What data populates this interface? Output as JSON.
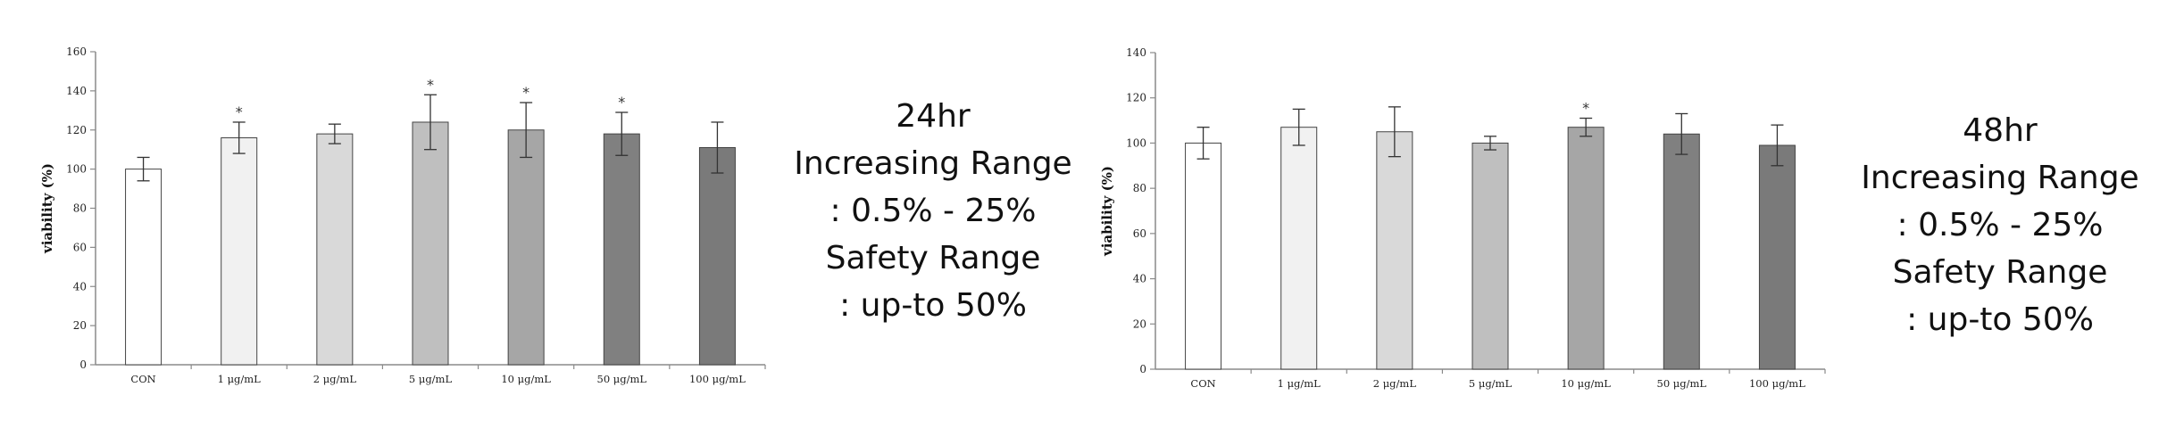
{
  "chart_data": [
    {
      "type": "bar",
      "ylabel": "viability (%)",
      "ylim": [
        0,
        160
      ],
      "yticks": [
        0,
        20,
        40,
        60,
        80,
        100,
        120,
        140,
        160
      ],
      "categories": [
        "CON",
        "1 μg/mL",
        "2 μg/mL",
        "5 μg/mL",
        "10 μg/mL",
        "50 μg/mL",
        "100 μg/mL"
      ],
      "values": [
        100,
        116,
        118,
        124,
        120,
        118,
        111
      ],
      "errors": [
        6,
        8,
        5,
        14,
        14,
        11,
        13
      ],
      "significance": [
        "",
        "*",
        "",
        "*",
        "*",
        "*",
        ""
      ],
      "colors": [
        "#ffffff",
        "#f1f1f1",
        "#d9d9d9",
        "#bfbfbf",
        "#a6a6a6",
        "#808080",
        "#7a7a7a"
      ],
      "grid": false,
      "legend": "none"
    },
    {
      "type": "bar",
      "ylabel": "viability (%)",
      "ylim": [
        0,
        140
      ],
      "yticks": [
        0,
        20,
        40,
        60,
        80,
        100,
        120,
        140
      ],
      "categories": [
        "CON",
        "1 μg/mL",
        "2 μg/mL",
        "5 μg/mL",
        "10 μg/mL",
        "50 μg/mL",
        "100 μg/mL"
      ],
      "values": [
        100,
        107,
        105,
        100,
        107,
        104,
        99
      ],
      "errors": [
        7,
        8,
        11,
        3,
        4,
        9,
        9
      ],
      "significance": [
        "",
        "",
        "",
        "",
        "*",
        "",
        ""
      ],
      "colors": [
        "#ffffff",
        "#f1f1f1",
        "#d9d9d9",
        "#bfbfbf",
        "#a6a6a6",
        "#808080",
        "#7a7a7a"
      ],
      "grid": false,
      "legend": "none"
    }
  ],
  "notes": [
    {
      "lines": [
        "24hr",
        "Increasing Range",
        ": 0.5% - 25%",
        "Safety Range",
        ": up-to 50%"
      ]
    },
    {
      "lines": [
        "48hr",
        "Increasing Range",
        ": 0.5% - 25%",
        "Safety Range",
        ": up-to 50%"
      ]
    }
  ]
}
